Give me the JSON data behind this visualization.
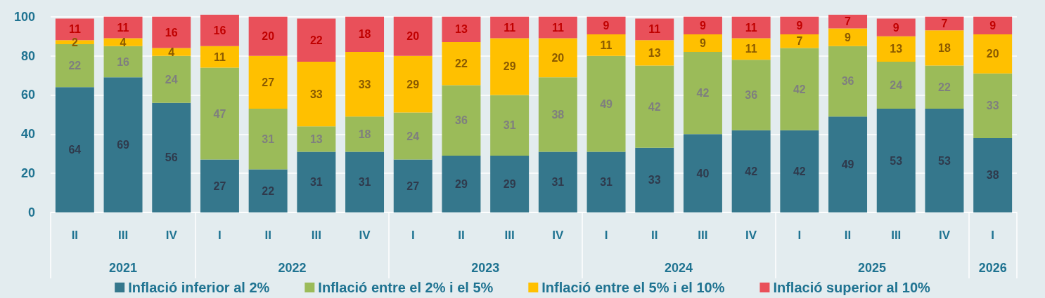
{
  "chart_data": {
    "type": "bar",
    "stacked": true,
    "categories": [
      "II",
      "III",
      "IV",
      "I",
      "II",
      "III",
      "IV",
      "I",
      "II",
      "III",
      "IV",
      "I",
      "II",
      "III",
      "IV",
      "I",
      "II",
      "III",
      "IV",
      "I"
    ],
    "series": [
      {
        "name": "Inflació inferior al 2%",
        "color": "#35778c",
        "values": [
          64,
          69,
          56,
          27,
          22,
          31,
          31,
          27,
          29,
          29,
          31,
          31,
          33,
          40,
          42,
          42,
          49,
          53,
          53,
          38
        ]
      },
      {
        "name": "Inflació entre el 2% i el 5%",
        "color": "#9bbb59",
        "values": [
          22,
          16,
          24,
          47,
          31,
          13,
          18,
          24,
          36,
          31,
          38,
          49,
          42,
          42,
          36,
          42,
          36,
          24,
          22,
          33
        ]
      },
      {
        "name": "Inflació entre el 5% i el 10%",
        "color": "#ffc000",
        "values": [
          2,
          4,
          4,
          11,
          27,
          33,
          33,
          29,
          22,
          29,
          20,
          11,
          13,
          9,
          11,
          7,
          9,
          13,
          18,
          20
        ]
      },
      {
        "name": "Inflació superior al 10%",
        "color": "#e9505a",
        "values": [
          11,
          11,
          16,
          16,
          20,
          22,
          18,
          20,
          13,
          11,
          11,
          9,
          11,
          9,
          11,
          9,
          7,
          9,
          7,
          9
        ]
      }
    ],
    "ylim": [
      0,
      101
    ],
    "yticks": [
      0,
      20,
      40,
      60,
      80,
      100
    ],
    "grid": "y",
    "legend": "bottom",
    "data_labels": true,
    "annotations": [
      "2021",
      "2022",
      "2023",
      "2024",
      "2025",
      "2026"
    ]
  }
}
